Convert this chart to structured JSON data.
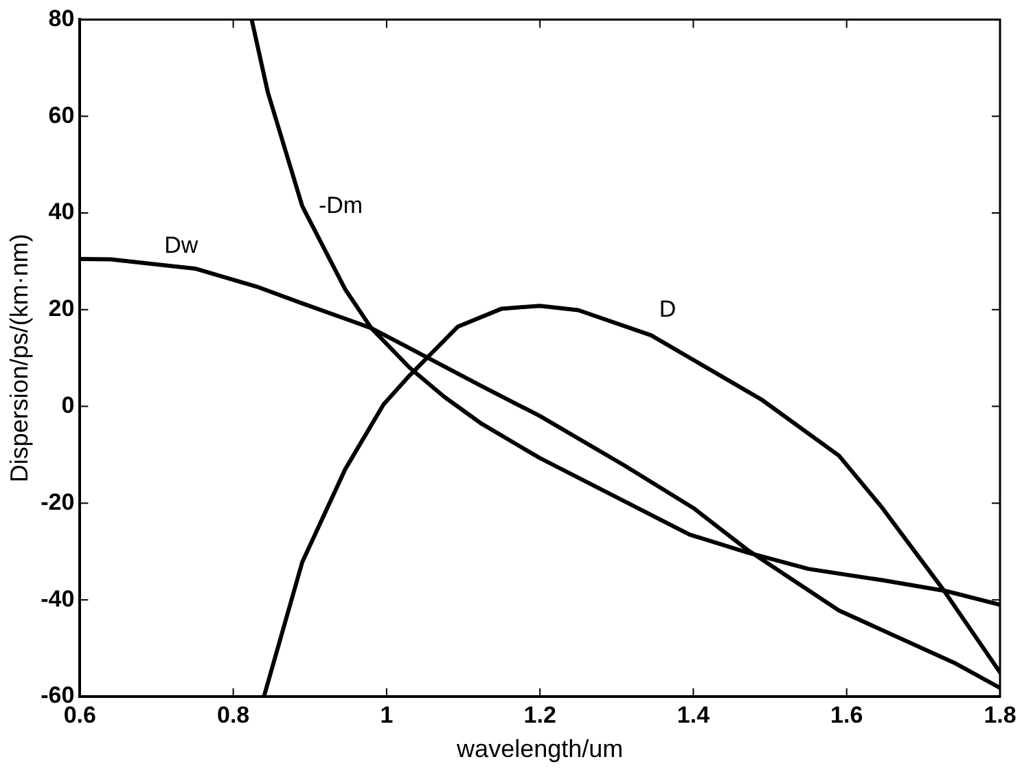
{
  "chart_data": {
    "type": "line",
    "xlabel": "wavelength/um",
    "ylabel": "Dispersion/ps/(km·nm)",
    "xlim": [
      0.6,
      1.8
    ],
    "xticks": [
      0.6,
      0.8,
      1,
      1.2,
      1.4,
      1.6,
      1.8
    ],
    "ylim": [
      -60,
      80
    ],
    "yticks": [
      -60,
      -40,
      -20,
      0,
      20,
      40,
      60,
      80
    ],
    "grid": false,
    "legend": false,
    "marker": "none",
    "line_style": "solid",
    "series": [
      {
        "name": "Dw",
        "color": "#000000",
        "x": [
          0.6,
          0.64,
          0.75,
          0.83,
          0.89,
          0.98,
          1.124,
          1.2,
          1.31,
          1.4,
          1.47,
          1.59,
          1.74,
          1.8
        ],
        "values": [
          30.5,
          30.4,
          28.5,
          24.8,
          21.3,
          16.2,
          4.2,
          -2,
          -12.2,
          -21,
          -29.6,
          -42.2,
          -53,
          -58.2
        ]
      },
      {
        "name": "-Dm",
        "color": "#000000",
        "x": [
          0.824,
          0.845,
          0.89,
          0.946,
          0.98,
          1.03,
          1.075,
          1.124,
          1.2,
          1.31,
          1.395,
          1.47,
          1.55,
          1.645,
          1.73,
          1.8
        ],
        "values": [
          80,
          65,
          41.4,
          24.2,
          16.2,
          8,
          2,
          -3.6,
          -10.7,
          -19.6,
          -26.5,
          -30.2,
          -33.6,
          -35.9,
          -38.2,
          -41
        ]
      },
      {
        "name": "D",
        "color": "#000000",
        "x": [
          0.84,
          0.89,
          0.946,
          0.996,
          1.03,
          1.093,
          1.15,
          1.2,
          1.25,
          1.345,
          1.49,
          1.59,
          1.645,
          1.726,
          1.8
        ],
        "values": [
          -60,
          -32.2,
          -13,
          0.4,
          6.4,
          16.5,
          20.2,
          20.8,
          19.9,
          14.7,
          1.3,
          -10.2,
          -20.7,
          -37.9,
          -55
        ]
      }
    ]
  }
}
